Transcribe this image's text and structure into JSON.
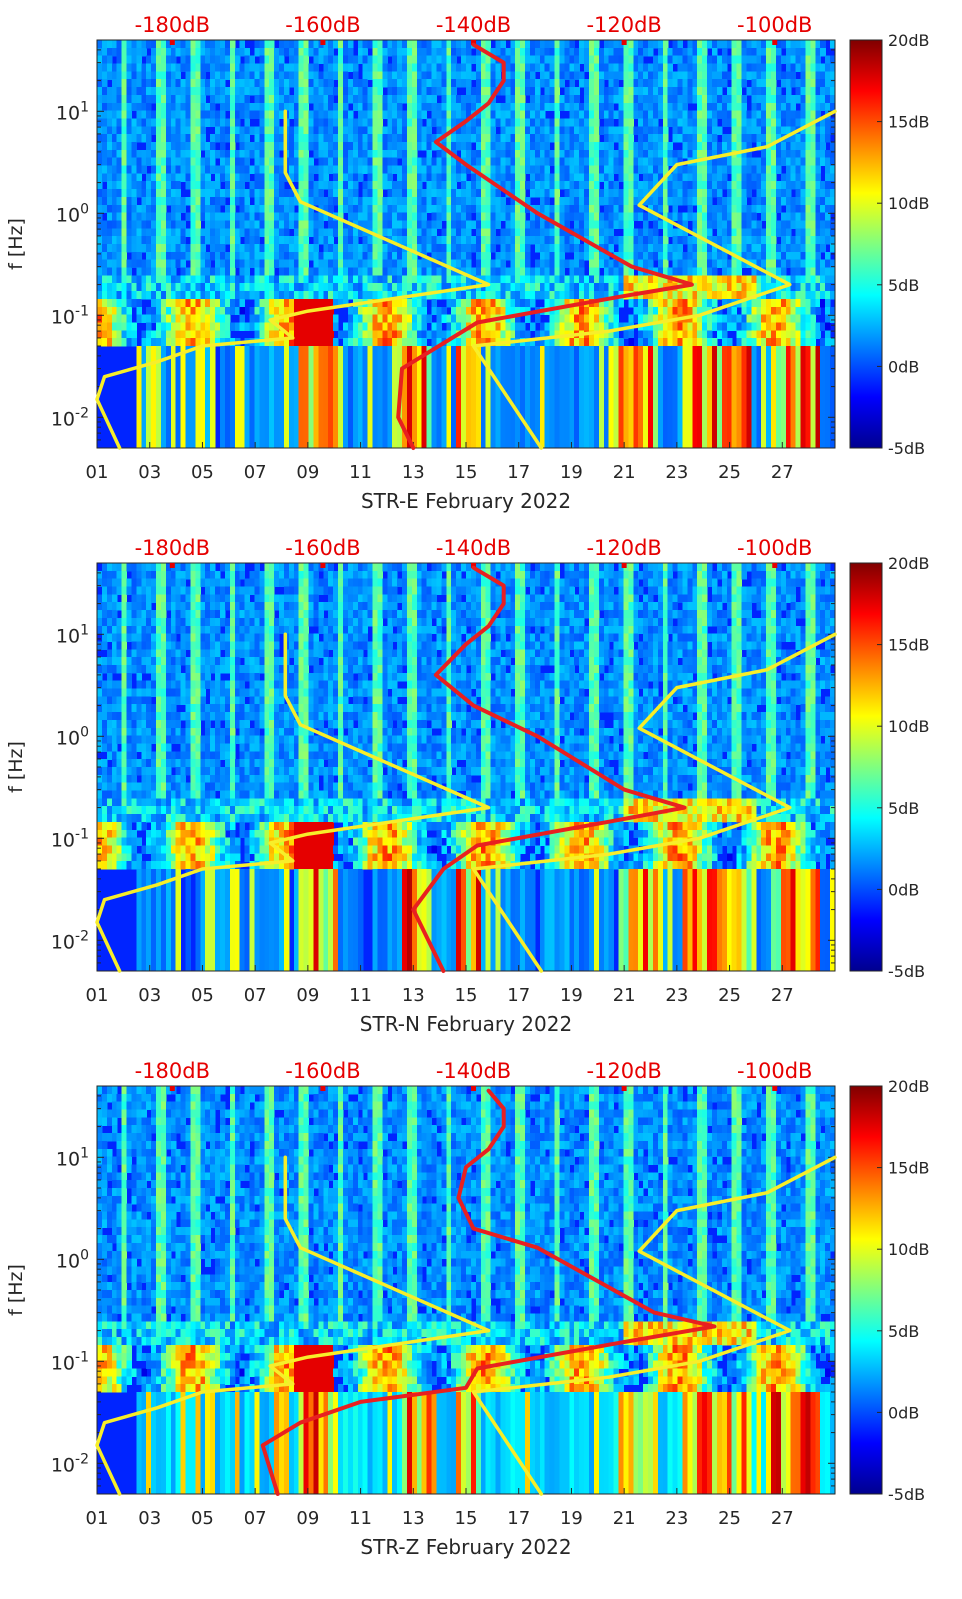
{
  "figure": {
    "axis_label_y": "f [Hz]",
    "top_axis_label_color": "#e60000",
    "overlay_colors": {
      "model_curve": "#e82020",
      "noise_model_curve": "#f7ee2a"
    }
  },
  "chart_data": [
    {
      "type": "heatmap",
      "title": "STR-E February 2022",
      "xlabel": "STR-E February 2022",
      "ylabel": "f [Hz]",
      "xlim": [
        1,
        29
      ],
      "ylim": [
        0.005,
        50
      ],
      "yscale": "log",
      "x_ticks": [
        "01",
        "03",
        "05",
        "07",
        "09",
        "11",
        "13",
        "15",
        "17",
        "19",
        "21",
        "23",
        "25",
        "27"
      ],
      "x_tick_values": [
        1,
        3,
        5,
        7,
        9,
        11,
        13,
        15,
        17,
        19,
        21,
        23,
        25,
        27
      ],
      "y_ticks": [
        "10^{-2}",
        "10^{-1}",
        "10^{0}",
        "10^{1}"
      ],
      "y_tick_values": [
        0.01,
        0.1,
        1,
        10
      ],
      "top_axis": {
        "label_values": [
          "-180dB",
          "-160dB",
          "-140dB",
          "-120dB",
          "-100dB"
        ],
        "range_db": [
          -190,
          -92
        ]
      },
      "colorbar": {
        "min": -5,
        "max": 20,
        "ticks": [
          "-5dB",
          "0dB",
          "5dB",
          "10dB",
          "15dB",
          "20dB"
        ],
        "tick_values": [
          -5,
          0,
          5,
          10,
          15,
          20
        ],
        "colormap": "jet"
      },
      "series": [
        {
          "name": "red-curve",
          "axis": "top_db",
          "points": [
            [
              -148,
              0.005
            ],
            [
              -150,
              0.01
            ],
            [
              -149.5,
              0.03
            ],
            [
              -139.5,
              0.085
            ],
            [
              -121,
              0.15
            ],
            [
              -111,
              0.2
            ],
            [
              -119,
              0.3
            ],
            [
              -131.5,
              1
            ],
            [
              -141,
              3
            ],
            [
              -145,
              5
            ],
            [
              -141,
              8
            ],
            [
              -138,
              12
            ],
            [
              -136,
              20
            ],
            [
              -136,
              30
            ],
            [
              -140,
              45
            ]
          ]
        },
        {
          "name": "yellow-low-noise-model",
          "axis": "top_db",
          "points": [
            [
              -187,
              0.005
            ],
            [
              -190,
              0.015
            ],
            [
              -189,
              0.025
            ],
            [
              -182,
              0.035
            ],
            [
              -176,
              0.05
            ],
            [
              -164,
              0.06
            ],
            [
              -167,
              0.09
            ],
            [
              -162,
              0.11
            ],
            [
              -138,
              0.2
            ],
            [
              -163,
              1.3
            ],
            [
              -165,
              2.5
            ],
            [
              -165,
              10
            ]
          ]
        },
        {
          "name": "yellow-high-noise-model",
          "axis": "top_db",
          "points": [
            [
              -131,
              0.005
            ],
            [
              -140,
              0.05
            ],
            [
              -122,
              0.07
            ],
            [
              -110,
              0.1
            ],
            [
              -98,
              0.2
            ],
            [
              -118,
              1.2
            ],
            [
              -113,
              3
            ],
            [
              -101,
              4.5
            ],
            [
              -92,
              10
            ]
          ]
        }
      ]
    },
    {
      "type": "heatmap",
      "title": "STR-N February 2022",
      "xlabel": "STR-N February 2022",
      "ylabel": "f [Hz]",
      "xlim": [
        1,
        29
      ],
      "ylim": [
        0.005,
        50
      ],
      "yscale": "log",
      "x_ticks": [
        "01",
        "03",
        "05",
        "07",
        "09",
        "11",
        "13",
        "15",
        "17",
        "19",
        "21",
        "23",
        "25",
        "27"
      ],
      "x_tick_values": [
        1,
        3,
        5,
        7,
        9,
        11,
        13,
        15,
        17,
        19,
        21,
        23,
        25,
        27
      ],
      "y_ticks": [
        "10^{-2}",
        "10^{-1}",
        "10^{0}",
        "10^{1}"
      ],
      "y_tick_values": [
        0.01,
        0.1,
        1,
        10
      ],
      "top_axis": {
        "label_values": [
          "-180dB",
          "-160dB",
          "-140dB",
          "-120dB",
          "-100dB"
        ],
        "range_db": [
          -190,
          -92
        ]
      },
      "colorbar": {
        "min": -5,
        "max": 20,
        "ticks": [
          "-5dB",
          "0dB",
          "5dB",
          "10dB",
          "15dB",
          "20dB"
        ],
        "tick_values": [
          -5,
          0,
          5,
          10,
          15,
          20
        ],
        "colormap": "jet"
      },
      "series": [
        {
          "name": "red-curve",
          "axis": "top_db",
          "points": [
            [
              -144,
              0.005
            ],
            [
              -146,
              0.01
            ],
            [
              -148,
              0.02
            ],
            [
              -144,
              0.05
            ],
            [
              -139.5,
              0.085
            ],
            [
              -121,
              0.15
            ],
            [
              -112,
              0.2
            ],
            [
              -120,
              0.3
            ],
            [
              -131.5,
              1
            ],
            [
              -140,
              2
            ],
            [
              -145,
              4
            ],
            [
              -141,
              8
            ],
            [
              -138,
              12
            ],
            [
              -136,
              20
            ],
            [
              -136,
              30
            ],
            [
              -140,
              45
            ]
          ]
        },
        {
          "name": "yellow-low-noise-model",
          "axis": "top_db",
          "points": [
            [
              -187,
              0.005
            ],
            [
              -190,
              0.015
            ],
            [
              -189,
              0.025
            ],
            [
              -182,
              0.035
            ],
            [
              -176,
              0.05
            ],
            [
              -164,
              0.06
            ],
            [
              -167,
              0.09
            ],
            [
              -162,
              0.11
            ],
            [
              -138,
              0.2
            ],
            [
              -163,
              1.3
            ],
            [
              -165,
              2.5
            ],
            [
              -165,
              10
            ]
          ]
        },
        {
          "name": "yellow-high-noise-model",
          "axis": "top_db",
          "points": [
            [
              -131,
              0.005
            ],
            [
              -140,
              0.05
            ],
            [
              -122,
              0.07
            ],
            [
              -110,
              0.1
            ],
            [
              -98,
              0.2
            ],
            [
              -118,
              1.2
            ],
            [
              -113,
              3
            ],
            [
              -101,
              4.5
            ],
            [
              -92,
              10
            ]
          ]
        }
      ]
    },
    {
      "type": "heatmap",
      "title": "STR-Z February 2022",
      "xlabel": "STR-Z February 2022",
      "ylabel": "f [Hz]",
      "xlim": [
        1,
        29
      ],
      "ylim": [
        0.005,
        50
      ],
      "yscale": "log",
      "x_ticks": [
        "01",
        "03",
        "05",
        "07",
        "09",
        "11",
        "13",
        "15",
        "17",
        "19",
        "21",
        "23",
        "25",
        "27"
      ],
      "x_tick_values": [
        1,
        3,
        5,
        7,
        9,
        11,
        13,
        15,
        17,
        19,
        21,
        23,
        25,
        27
      ],
      "y_ticks": [
        "10^{-2}",
        "10^{-1}",
        "10^{0}",
        "10^{1}"
      ],
      "y_tick_values": [
        0.01,
        0.1,
        1,
        10
      ],
      "top_axis": {
        "label_values": [
          "-180dB",
          "-160dB",
          "-140dB",
          "-120dB",
          "-100dB"
        ],
        "range_db": [
          -190,
          -92
        ]
      },
      "colorbar": {
        "min": -5,
        "max": 20,
        "ticks": [
          "-5dB",
          "0dB",
          "5dB",
          "10dB",
          "15dB",
          "20dB"
        ],
        "tick_values": [
          -5,
          0,
          5,
          10,
          15,
          20
        ],
        "colormap": "jet"
      },
      "series": [
        {
          "name": "red-curve",
          "axis": "top_db",
          "points": [
            [
              -166,
              0.005
            ],
            [
              -168,
              0.015
            ],
            [
              -163,
              0.025
            ],
            [
              -155,
              0.04
            ],
            [
              -141,
              0.055
            ],
            [
              -139.5,
              0.085
            ],
            [
              -121,
              0.15
            ],
            [
              -108,
              0.22
            ],
            [
              -116,
              0.3
            ],
            [
              -131.5,
              1.3
            ],
            [
              -140,
              2
            ],
            [
              -142,
              4
            ],
            [
              -141,
              8
            ],
            [
              -138,
              12
            ],
            [
              -136,
              20
            ],
            [
              -136,
              30
            ],
            [
              -138,
              45
            ]
          ]
        },
        {
          "name": "yellow-low-noise-model",
          "axis": "top_db",
          "points": [
            [
              -187,
              0.005
            ],
            [
              -190,
              0.015
            ],
            [
              -189,
              0.025
            ],
            [
              -182,
              0.035
            ],
            [
              -176,
              0.05
            ],
            [
              -164,
              0.06
            ],
            [
              -167,
              0.09
            ],
            [
              -162,
              0.11
            ],
            [
              -138,
              0.2
            ],
            [
              -163,
              1.3
            ],
            [
              -165,
              2.5
            ],
            [
              -165,
              10
            ]
          ]
        },
        {
          "name": "yellow-high-noise-model",
          "axis": "top_db",
          "points": [
            [
              -131,
              0.005
            ],
            [
              -140,
              0.05
            ],
            [
              -122,
              0.07
            ],
            [
              -110,
              0.1
            ],
            [
              -98,
              0.2
            ],
            [
              -118,
              1.2
            ],
            [
              -113,
              3
            ],
            [
              -101,
              4.5
            ],
            [
              -92,
              10
            ]
          ]
        }
      ]
    }
  ]
}
